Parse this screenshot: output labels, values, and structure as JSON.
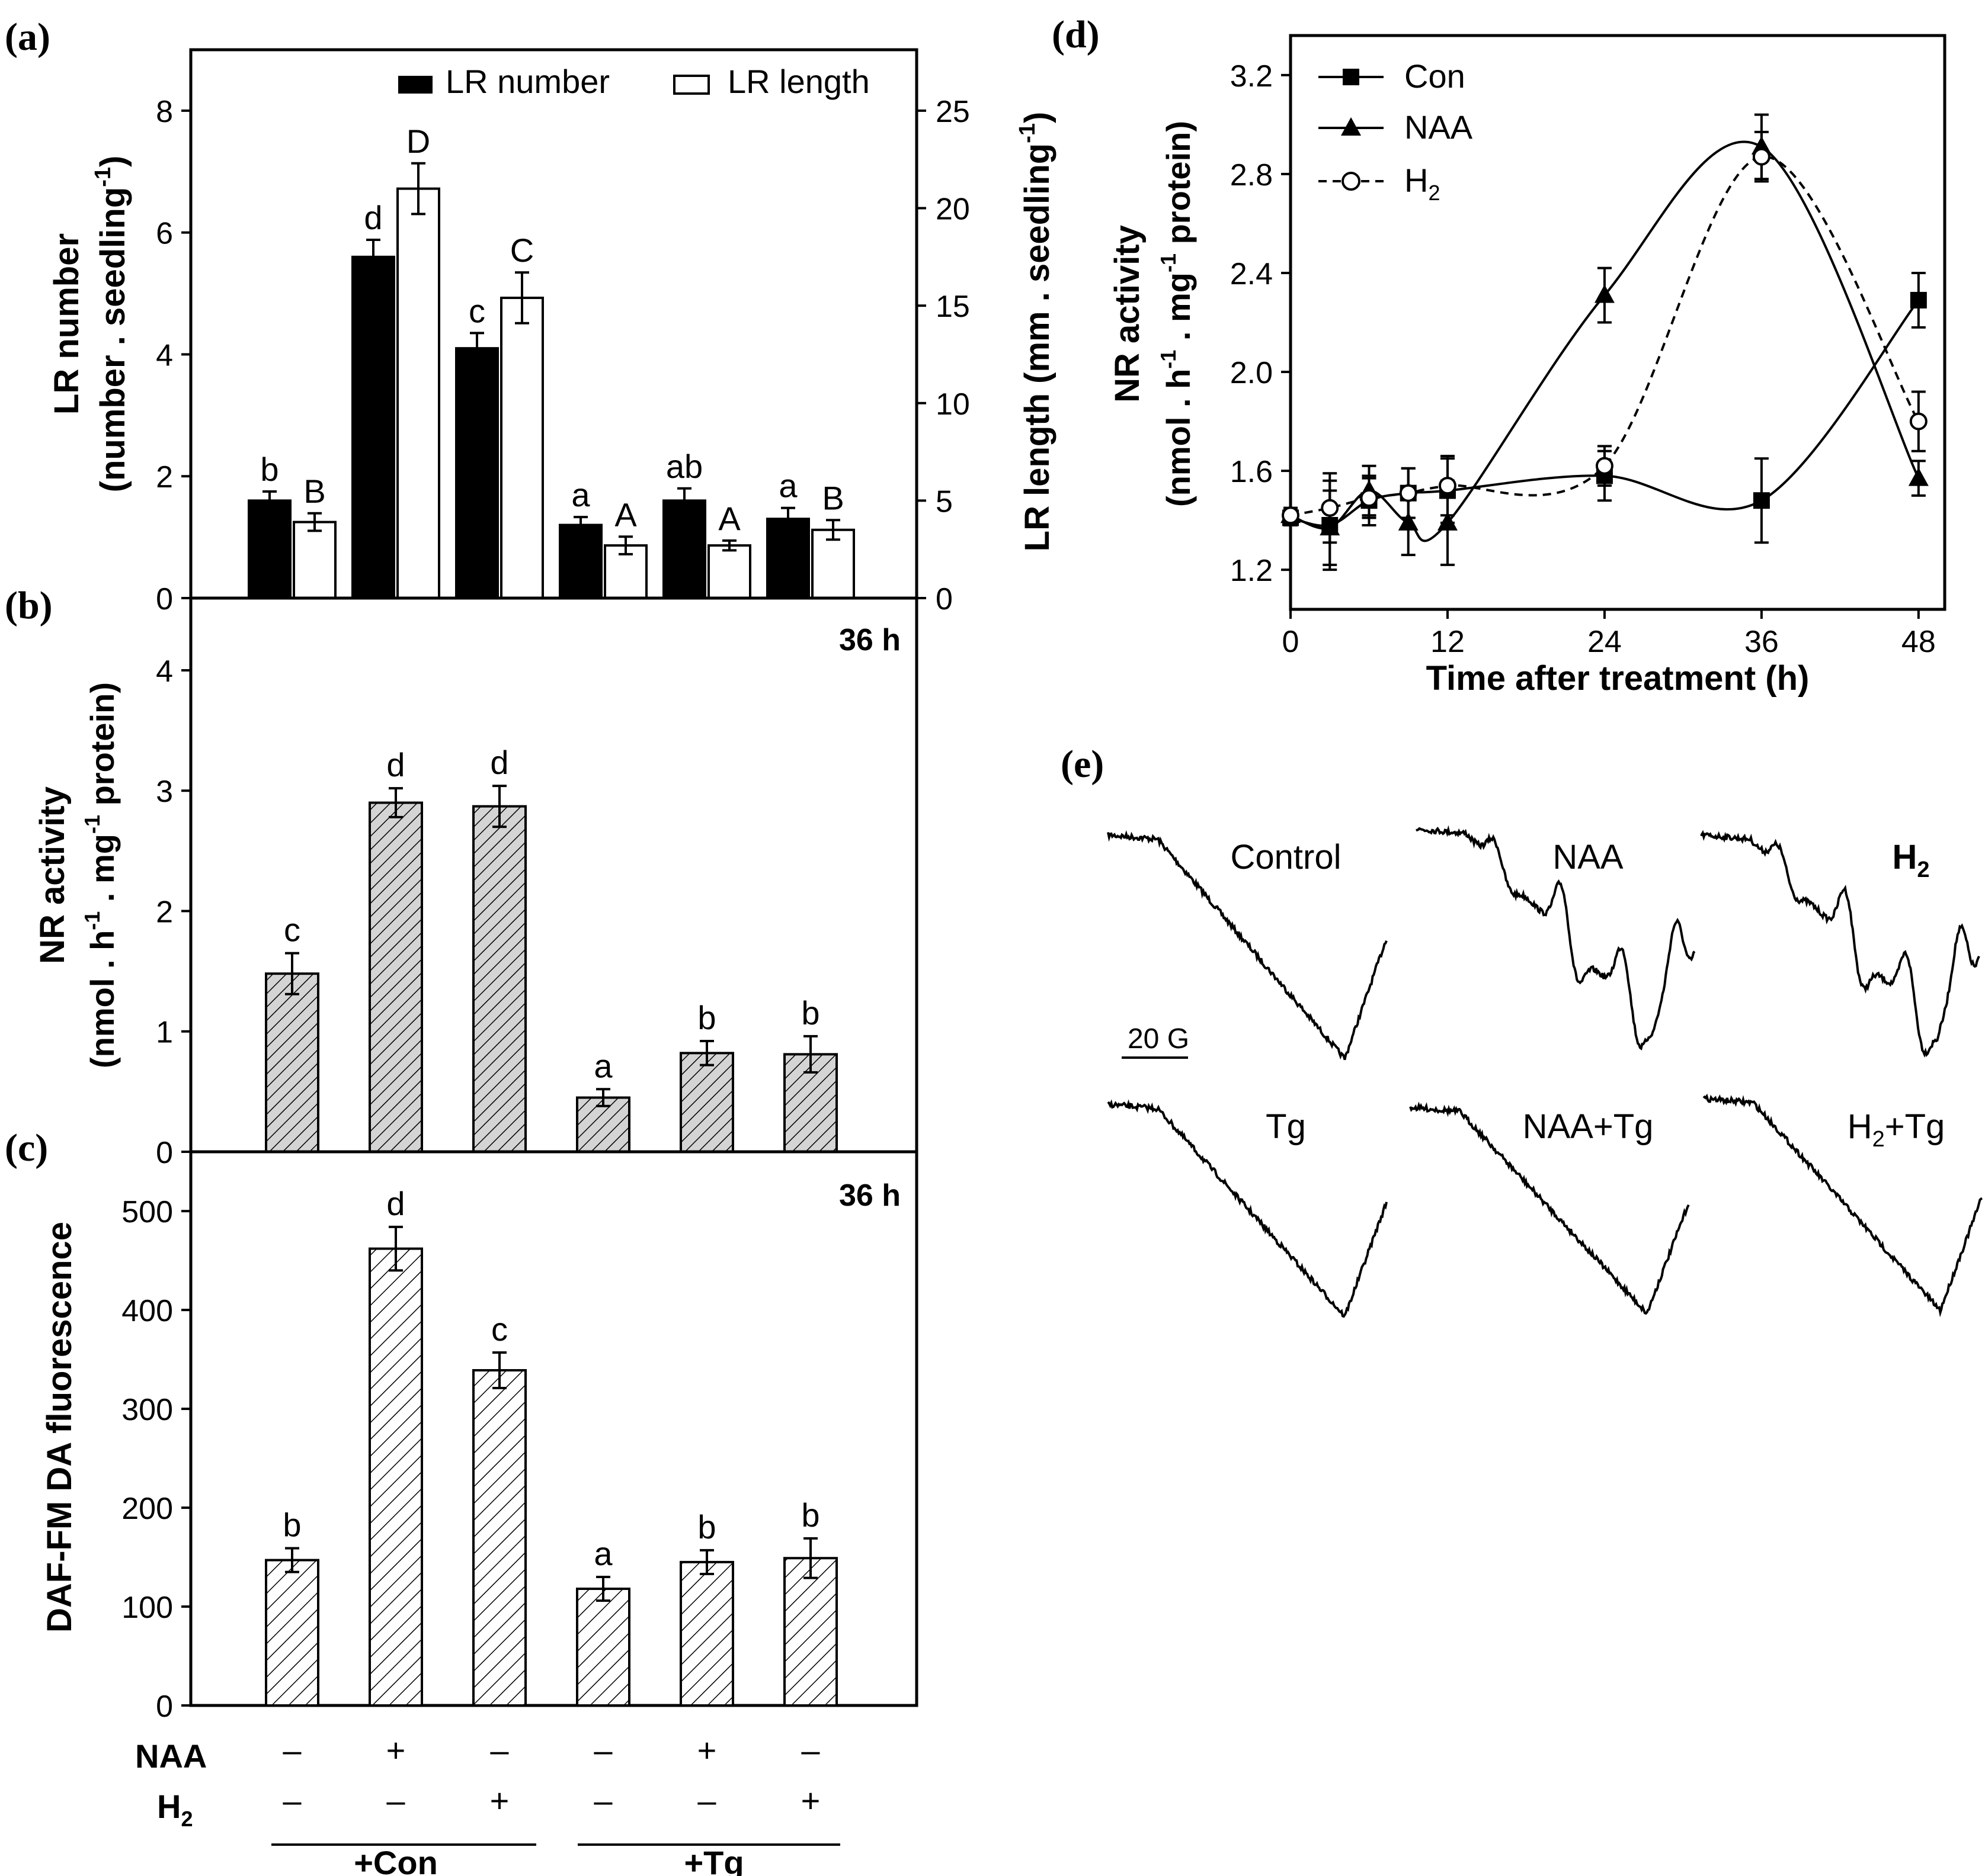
{
  "panels": {
    "a": {
      "label": "(a)"
    },
    "b": {
      "label": "(b)"
    },
    "c": {
      "label": "(c)"
    },
    "d": {
      "label": "(d)"
    },
    "e": {
      "label": "(e)"
    }
  },
  "treatments": {
    "naa_label": "NAA",
    "h2_label": "H",
    "h2_sub": "2",
    "naa_signs": [
      "–",
      "+",
      "–",
      "–",
      "+",
      "–"
    ],
    "h2_signs": [
      "–",
      "–",
      "+",
      "–",
      "–",
      "+"
    ],
    "group_con": "+Con",
    "group_tg": "+Tg"
  },
  "epr": {
    "scale_label": "20 G",
    "traces": [
      {
        "label": "Control",
        "type": "broad"
      },
      {
        "label": "NAA",
        "type": "triplet"
      },
      {
        "label": "H",
        "sub": "2",
        "type": "triplet"
      },
      {
        "label": "Tg",
        "type": "broad"
      },
      {
        "label": "NAA+Tg",
        "type": "broad"
      },
      {
        "label": "H",
        "sub": "2",
        "suffix": "+Tg",
        "type": "broad"
      }
    ]
  },
  "chart_data": [
    {
      "id": "a",
      "type": "bar",
      "ylabel_line1": "LR number",
      "ylabel_line2": "(number . seedling",
      "ylabel_sup": "-1",
      "ylabel_close": ")",
      "y2label": "LR length (mm . seedling",
      "y2label_sup": "-1",
      "y2label_close": ")",
      "ylim": [
        0,
        9
      ],
      "y2lim": [
        0,
        28.125
      ],
      "yticks": [
        0,
        2,
        4,
        6,
        8
      ],
      "y2ticks": [
        0,
        5,
        10,
        15,
        20,
        25
      ],
      "series": [
        {
          "name": "LR number",
          "axis": "left",
          "fill": "#000000",
          "values": [
            1.6,
            5.6,
            4.1,
            1.2,
            1.6,
            1.3
          ],
          "errors": [
            0.15,
            0.28,
            0.25,
            0.13,
            0.2,
            0.18
          ],
          "letters": [
            "b",
            "d",
            "c",
            "a",
            "ab",
            "a"
          ]
        },
        {
          "name": "LR length",
          "axis": "right",
          "fill": "#ffffff",
          "values": [
            3.9,
            21.0,
            15.4,
            2.7,
            2.7,
            3.5
          ],
          "errors": [
            0.45,
            1.3,
            1.3,
            0.45,
            0.25,
            0.5
          ],
          "letters": [
            "B",
            "D",
            "C",
            "A",
            "A",
            "B"
          ]
        }
      ]
    },
    {
      "id": "b",
      "type": "bar",
      "ylabel_line1": "NR activity",
      "ylabel_line2a": "(nmol . h",
      "ylabel_sup1": "-1",
      "ylabel_line2b": " . mg",
      "ylabel_sup2": "-1",
      "ylabel_line2c": " protein)",
      "annotation": "36 h",
      "ylim": [
        0,
        4.6
      ],
      "yticks": [
        0,
        1,
        2,
        3,
        4
      ],
      "values": [
        1.48,
        2.9,
        2.87,
        0.45,
        0.82,
        0.81
      ],
      "errors": [
        0.17,
        0.12,
        0.17,
        0.07,
        0.1,
        0.15
      ],
      "letters": [
        "c",
        "d",
        "d",
        "a",
        "b",
        "b"
      ]
    },
    {
      "id": "c",
      "type": "bar",
      "ylabel": "DAF-FM DA fluorescence",
      "annotation": "36 h",
      "ylim": [
        0,
        560
      ],
      "yticks": [
        0,
        100,
        200,
        300,
        400,
        500
      ],
      "values": [
        147,
        462,
        339,
        118,
        145,
        149
      ],
      "errors": [
        12,
        22,
        18,
        12,
        12,
        20
      ],
      "letters": [
        "b",
        "d",
        "c",
        "a",
        "b",
        "b"
      ]
    },
    {
      "id": "d",
      "type": "line",
      "xlabel": "Time after treatment (h)",
      "ylabel_line1": "NR activity",
      "ylabel_line2a": "(nmol . h",
      "ylabel_sup1": "-1",
      "ylabel_line2b": " . mg",
      "ylabel_sup2": "-1",
      "ylabel_line2c": " protein)",
      "xlim": [
        0,
        50
      ],
      "ylim": [
        1.04,
        3.36
      ],
      "xticks": [
        0,
        12,
        24,
        36,
        48
      ],
      "yticks": [
        1.2,
        1.6,
        2.0,
        2.4,
        2.8,
        3.2
      ],
      "ytick_labels": [
        "1.2",
        "1.6",
        "2.0",
        "2.4",
        "2.8",
        "3.2"
      ],
      "x": [
        0,
        3,
        6,
        9,
        12,
        24,
        36,
        48
      ],
      "series": [
        {
          "name": "Con",
          "marker": "square",
          "dash": false,
          "values": [
            1.41,
            1.38,
            1.48,
            1.51,
            1.52,
            1.58,
            1.48,
            2.29
          ],
          "errors": [
            0.03,
            0.18,
            0.1,
            0.1,
            0.13,
            0.1,
            0.17,
            0.11
          ]
        },
        {
          "name": "NAA",
          "marker": "triangle",
          "dash": false,
          "values": [
            1.42,
            1.37,
            1.52,
            1.39,
            1.39,
            2.31,
            2.91,
            1.57
          ],
          "errors": [
            0.03,
            0.15,
            0.1,
            0.13,
            0.17,
            0.11,
            0.13,
            0.07
          ]
        },
        {
          "name": "H",
          "name_sub": "2",
          "marker": "circle",
          "dash": true,
          "values": [
            1.42,
            1.45,
            1.49,
            1.51,
            1.54,
            1.62,
            2.87,
            1.8
          ],
          "errors": [
            0.03,
            0.14,
            0.08,
            0.1,
            0.12,
            0.08,
            0.1,
            0.12
          ]
        }
      ]
    }
  ]
}
